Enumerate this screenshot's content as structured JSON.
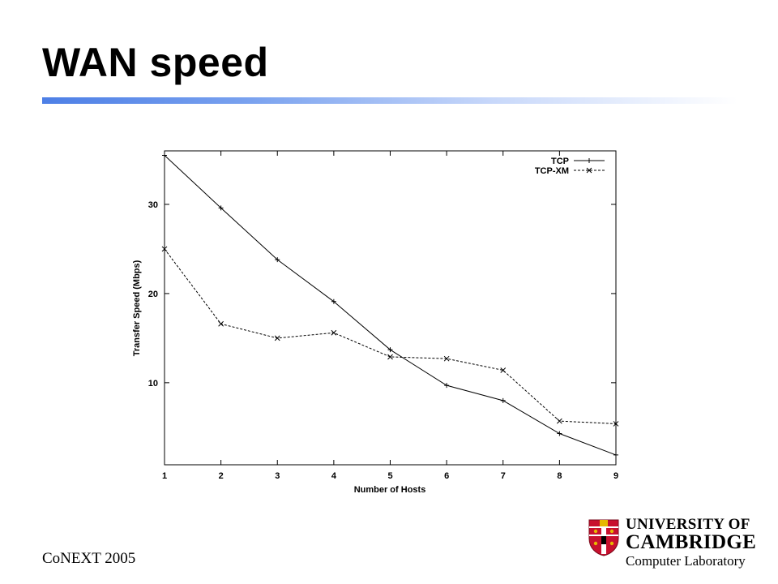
{
  "slide": {
    "title": "WAN speed",
    "footer": "CoNEXT 2005"
  },
  "logo": {
    "line1": "UNIVERSITY OF",
    "line2": "CAMBRIDGE",
    "line3": "Computer Laboratory",
    "colors": {
      "shield_red": "#c8102e",
      "shield_gold": "#e6b800",
      "shield_black": "#000000"
    }
  },
  "colors": {
    "title_rule_start": "#4d7fe6",
    "title_rule_end": "#ffffff"
  },
  "chart_data": {
    "type": "line",
    "title": "",
    "xlabel": "Number of Hosts",
    "ylabel": "Transfer Speed (Mbps)",
    "x": [
      1,
      2,
      3,
      4,
      5,
      6,
      7,
      8,
      9
    ],
    "xlim": [
      1,
      9
    ],
    "ylim": [
      0.8,
      36
    ],
    "xticks": [
      1,
      2,
      3,
      4,
      5,
      6,
      7,
      8,
      9
    ],
    "yticks": [
      10,
      20,
      30
    ],
    "grid": false,
    "legend": "top-right",
    "series": [
      {
        "name": "TCP",
        "style": "solid",
        "marker": "+",
        "values": [
          35.5,
          29.6,
          23.8,
          19.1,
          13.7,
          9.7,
          8.0,
          4.3,
          1.9
        ]
      },
      {
        "name": "TCP-XM",
        "style": "dashed",
        "marker": "x",
        "values": [
          25.0,
          16.6,
          15.0,
          15.6,
          12.9,
          12.7,
          11.4,
          5.7,
          5.4
        ]
      }
    ]
  }
}
